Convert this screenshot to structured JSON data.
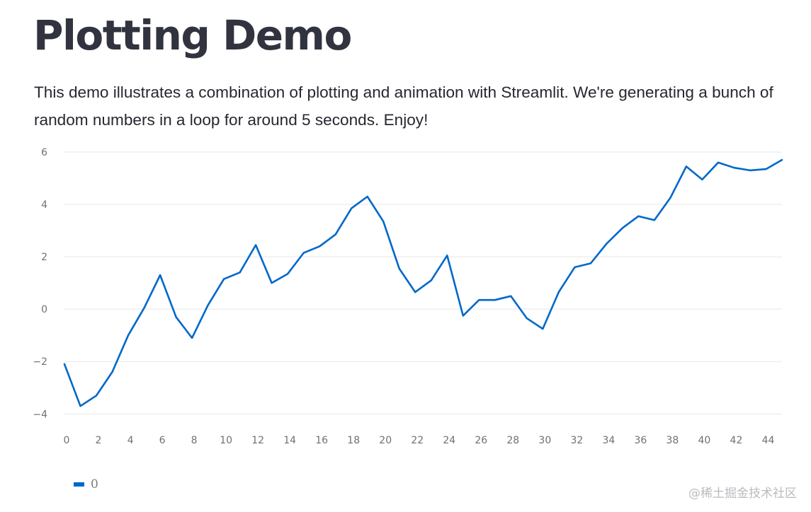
{
  "page": {
    "title": "Plotting Demo",
    "description": "This demo illustrates a combination of plotting and animation with Streamlit. We're generating a bunch of random numbers in a loop for around 5 seconds. Enjoy!"
  },
  "watermark": "@稀土掘金技术社区",
  "colors": {
    "series": "#0068c9",
    "grid": "#e6e7ea",
    "tick_text": "#6f7077"
  },
  "chart_data": {
    "type": "line",
    "x": [
      0,
      1,
      2,
      3,
      4,
      5,
      6,
      7,
      8,
      9,
      10,
      11,
      12,
      13,
      14,
      15,
      16,
      17,
      18,
      19,
      20,
      21,
      22,
      23,
      24,
      25,
      26,
      27,
      28,
      29,
      30,
      31,
      32,
      33,
      34,
      35,
      36,
      37,
      38,
      39,
      40,
      41,
      42,
      43,
      44,
      45
    ],
    "series": [
      {
        "name": "0",
        "values": [
          -2.1,
          -3.7,
          -3.3,
          -2.4,
          -1.0,
          0.05,
          1.3,
          -0.3,
          -1.1,
          0.15,
          1.15,
          1.4,
          2.45,
          1.0,
          1.35,
          2.15,
          2.4,
          2.85,
          3.85,
          4.3,
          3.35,
          1.55,
          0.65,
          1.1,
          2.05,
          -0.25,
          0.35,
          0.35,
          0.5,
          -0.35,
          -0.75,
          0.65,
          1.6,
          1.75,
          2.5,
          3.1,
          3.55,
          3.4,
          4.25,
          5.45,
          4.95,
          5.6,
          5.4,
          5.3,
          5.35,
          5.7
        ]
      }
    ],
    "x_ticks": [
      "0",
      "2",
      "4",
      "6",
      "8",
      "10",
      "12",
      "14",
      "16",
      "18",
      "20",
      "22",
      "24",
      "26",
      "28",
      "30",
      "32",
      "34",
      "36",
      "38",
      "40",
      "42",
      "44"
    ],
    "y_ticks": [
      "−4",
      "−2",
      "0",
      "2",
      "4",
      "6"
    ],
    "xlim": [
      0,
      45
    ],
    "ylim": [
      -4.1,
      6.0
    ],
    "grid": "horizontal",
    "legend_position": "bottom-left",
    "title": "",
    "xlabel": "",
    "ylabel": ""
  }
}
